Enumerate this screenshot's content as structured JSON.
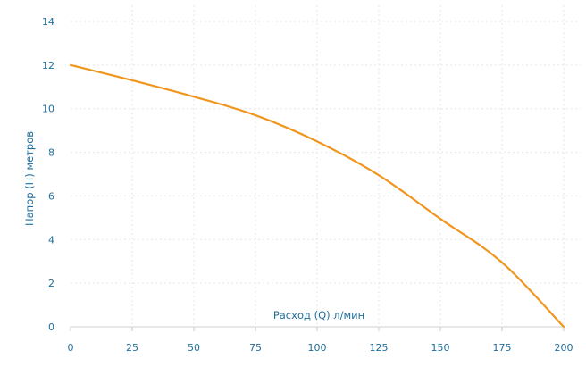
{
  "chart_data": {
    "type": "line",
    "xlabel": "Расход (Q) л/мин",
    "ylabel": "Напор (H) метров",
    "xlim": [
      0,
      200
    ],
    "ylim": [
      0,
      14
    ],
    "x_ticks": [
      0,
      25,
      50,
      75,
      100,
      125,
      150,
      175,
      200
    ],
    "y_ticks": [
      0,
      2,
      4,
      6,
      8,
      10,
      12,
      14
    ],
    "grid": true,
    "line_color": "#f0961e",
    "axis_text_color": "#1f6e9c",
    "series": [
      {
        "points": [
          {
            "x": 0,
            "y": 12.0
          },
          {
            "x": 25,
            "y": 11.3
          },
          {
            "x": 50,
            "y": 10.55
          },
          {
            "x": 75,
            "y": 9.7
          },
          {
            "x": 100,
            "y": 8.5
          },
          {
            "x": 125,
            "y": 6.95
          },
          {
            "x": 150,
            "y": 4.95
          },
          {
            "x": 175,
            "y": 2.95
          },
          {
            "x": 200,
            "y": 0.0
          }
        ]
      }
    ]
  }
}
